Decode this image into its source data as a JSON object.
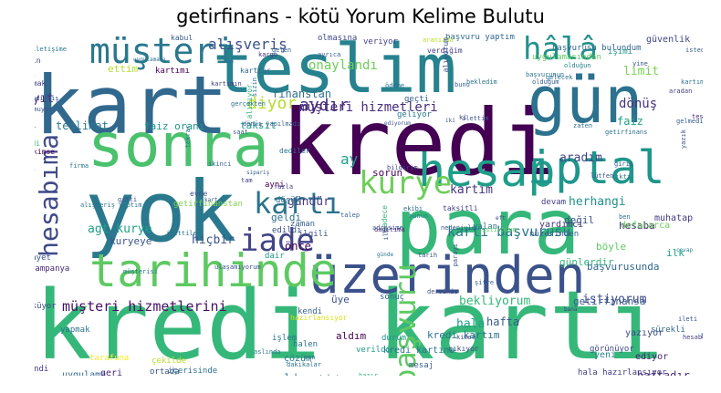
{
  "title": "getirfinans - kötü Yorum Kelime Bulutu",
  "colors": {
    "background": "#ffffff"
  },
  "words": [
    {
      "text": "kredi kartı",
      "color": "#35b779"
    },
    {
      "text": "kredi",
      "color": "#440154"
    },
    {
      "text": "kart",
      "color": "#31688e"
    },
    {
      "text": "teslim",
      "color": "#26828e"
    },
    {
      "text": "gün",
      "color": "#2c728e"
    },
    {
      "text": "yok",
      "color": "#2a788e"
    },
    {
      "text": "para",
      "color": "#35b779"
    },
    {
      "text": "sonra",
      "color": "#4ac16d"
    },
    {
      "text": "hesap",
      "color": "#1f9e89"
    },
    {
      "text": "üzerinden",
      "color": "#3b528b"
    },
    {
      "text": "iptal",
      "color": "#1f968b"
    },
    {
      "text": "tarihinde",
      "color": "#5ec962"
    },
    {
      "text": "müşteri",
      "color": "#2a788e"
    },
    {
      "text": "hesabıma",
      "color": "#3e4a89"
    },
    {
      "text": "kurye",
      "color": "#6ece58"
    },
    {
      "text": "başvuru",
      "color": "#5ec962"
    },
    {
      "text": "iade",
      "color": "#414487"
    },
    {
      "text": "hâlâ",
      "color": "#21918c"
    },
    {
      "text": "kartı",
      "color": "#2c728e"
    },
    {
      "text": "müşteri hizmetlerini",
      "color": "#471063"
    },
    {
      "text": "başvurusu yaptım",
      "color": "#31688e"
    },
    {
      "text": "alışveriş",
      "color": "#3b528b"
    },
    {
      "text": "kartı başvurusu",
      "color": "#2a788e"
    },
    {
      "text": "agt kurye",
      "color": "#1fa187"
    },
    {
      "text": "istiyorum",
      "color": "#3e4a89"
    },
    {
      "text": "bekliyorum",
      "color": "#35b779"
    },
    {
      "text": "onaylandı",
      "color": "#6ece58"
    },
    {
      "text": "diyor",
      "color": "#b5de2b"
    },
    {
      "text": "dönüş",
      "color": "#46337e"
    },
    {
      "text": "limit",
      "color": "#7ad151"
    },
    {
      "text": "aydır",
      "color": "#482878"
    },
    {
      "text": "müşteri hizmetleri",
      "color": "#472c7a"
    },
    {
      "text": "kartım",
      "color": "#46337e"
    },
    {
      "text": "finanstan",
      "color": "#2d708e"
    },
    {
      "text": "hafta",
      "color": "#38588c"
    },
    {
      "text": "kredi kartım",
      "color": "#2d708e"
    },
    {
      "text": "hesaba",
      "color": "#46337e"
    },
    {
      "text": "herhangi",
      "color": "#21918c"
    },
    {
      "text": "aradım",
      "color": "#414487"
    },
    {
      "text": "faiz",
      "color": "#1fa187"
    },
    {
      "text": "kayıt",
      "color": "#46337e"
    },
    {
      "text": "ay",
      "color": "#1fa187"
    },
    {
      "text": "sorun",
      "color": "#440154"
    },
    {
      "text": "kuryeye",
      "color": "#38588c"
    },
    {
      "text": "hiçbir",
      "color": "#3b528b"
    },
    {
      "text": "önce",
      "color": "#440154"
    },
    {
      "text": "gündür",
      "color": "#433e85"
    },
    {
      "text": "geldi",
      "color": "#2c728e"
    },
    {
      "text": "teslimat",
      "color": "#2a788e"
    },
    {
      "text": "faiz oranı",
      "color": "#1f968b"
    },
    {
      "text": "taksit",
      "color": "#1f968b"
    },
    {
      "text": "hala",
      "color": "#1fa187"
    },
    {
      "text": "bugün",
      "color": "#fde725"
    },
    {
      "text": "aldım",
      "color": "#440154"
    },
    {
      "text": "getirfinansa",
      "color": "#38588c"
    },
    {
      "text": "günlerdir",
      "color": "#35b779"
    },
    {
      "text": "üye",
      "color": "#3b528b"
    },
    {
      "text": "oldum",
      "color": "#2a788e"
    },
    {
      "text": "teslim edilmedi",
      "color": "#3e4a89"
    },
    {
      "text": "haftadır",
      "color": "#482878"
    },
    {
      "text": "başvurusunda",
      "color": "#31688e"
    },
    {
      "text": "böyle",
      "color": "#5ec962"
    },
    {
      "text": "ilk",
      "color": "#1fa187"
    },
    {
      "text": "değil",
      "color": "#3b528b"
    },
    {
      "text": "getirfinanstan",
      "color": "#7ad151"
    },
    {
      "text": "ettim",
      "color": "#b5de2b"
    },
    {
      "text": "uygulama",
      "color": "#31688e"
    },
    {
      "text": "kartımı",
      "color": "#440154"
    },
    {
      "text": "yeni",
      "color": "#26828e"
    },
    {
      "text": "ediyor",
      "color": "#481f70"
    },
    {
      "text": "yazıyor",
      "color": "#3e4a89"
    },
    {
      "text": "geri",
      "color": "#482878"
    },
    {
      "text": "çözüm",
      "color": "#2a788e"
    },
    {
      "text": "dair",
      "color": "#1f968b"
    },
    {
      "text": "şimdi",
      "color": "#35b779"
    },
    {
      "text": "kampanya",
      "color": "#482878"
    },
    {
      "text": "şikayet",
      "color": "#3b528b"
    },
    {
      "text": "işlem",
      "color": "#2a788e"
    },
    {
      "text": "yapmak",
      "color": "#2c728e"
    },
    {
      "text": "kendi",
      "color": "#355f8d"
    },
    {
      "text": "sonuç",
      "color": "#31688e"
    },
    {
      "text": "güvenlik",
      "color": "#414487"
    },
    {
      "text": "işimi",
      "color": "#1f968b"
    },
    {
      "text": "kabul",
      "color": "#38588c"
    },
    {
      "text": "olmasına",
      "color": "#3e4a89"
    },
    {
      "text": "başvuru yaptım",
      "color": "#31688e"
    },
    {
      "text": "başvurusu bulundum",
      "color": "#31688e"
    },
    {
      "text": "kartlar",
      "color": "#31688e"
    },
    {
      "text": "verdiğim",
      "color": "#433e85"
    },
    {
      "text": "dağıtıma",
      "color": "#3b528b"
    },
    {
      "text": "hazırlansıyor",
      "color": "#d8e219"
    },
    {
      "text": "çıkıyor",
      "color": "#3e4a89"
    },
    {
      "text": "devam",
      "color": "#433e85"
    },
    {
      "text": "kredi kartına",
      "color": "#2c728e"
    },
    {
      "text": "kredi kartını",
      "color": "#35b779"
    },
    {
      "text": "yardımcı",
      "color": "#46337e"
    },
    {
      "text": "muhatap",
      "color": "#453781"
    },
    {
      "text": "defalarca",
      "color": "#6ece58"
    },
    {
      "text": "nüzerinden",
      "color": "#355f8d"
    },
    {
      "text": "yalan",
      "color": "#2c728e"
    },
    {
      "text": "edildi",
      "color": "#3b528b"
    },
    {
      "text": "düşük",
      "color": "#2c728e"
    },
    {
      "text": "ilgili",
      "color": "#3b528b"
    },
    {
      "text": "taksitli",
      "color": "#433e85"
    },
    {
      "text": "zaman",
      "color": "#355f8d"
    },
    {
      "text": "ayni",
      "color": "#440154"
    },
    {
      "text": "dediler",
      "color": "#2c728e"
    },
    {
      "text": "geliyor",
      "color": "#2a788e"
    },
    {
      "text": "tarihi",
      "color": "#3b528b"
    },
    {
      "text": "paramı",
      "color": "#3b528b"
    },
    {
      "text": "kimse",
      "color": "#440154"
    },
    {
      "text": "evde",
      "color": "#3b528b"
    },
    {
      "text": "söylendi",
      "color": "#433e85"
    },
    {
      "text": "veriyor",
      "color": "#414487"
    },
    {
      "text": "uygulamasından",
      "color": "#5ec962"
    },
    {
      "text": "görünüyor",
      "color": "#3e4a89"
    },
    {
      "text": "sürekli",
      "color": "#31688e"
    },
    {
      "text": "verildi",
      "color": "#1f968b"
    },
    {
      "text": "durum",
      "color": "#1f968b"
    },
    {
      "text": "mesaj",
      "color": "#355f8d"
    },
    {
      "text": "halen",
      "color": "#2c728e"
    },
    {
      "text": "tarafuna",
      "color": "#fde725"
    },
    {
      "text": "ortada",
      "color": "#3b528b"
    },
    {
      "text": "içerisinde",
      "color": "#2c728e"
    },
    {
      "text": "çekilde",
      "color": "#b5de2b"
    },
    {
      "text": "gözüküyor",
      "color": "#3e4a89"
    },
    {
      "text": "kullanmak",
      "color": "#433e85"
    },
    {
      "text": "kuryenin",
      "color": "#414487"
    },
    {
      "text": "geçti",
      "color": "#355f8d"
    },
    {
      "text": "aslında",
      "color": "#2a788e"
    },
    {
      "text": "dakikalar",
      "color": "#2c728e"
    },
    {
      "text": "hala hazırlansıyor",
      "color": "#433e85"
    },
    {
      "text": "iletişime",
      "color": "#2a788e"
    },
    {
      "text": "oluşturdum",
      "color": "#31688e"
    },
    {
      "text": "uygulaması",
      "color": "#2c728e"
    },
    {
      "text": "kartımın",
      "color": "#433e85"
    },
    {
      "text": "saat",
      "color": "#355f8d"
    },
    {
      "text": "tekrar",
      "color": "#2a788e"
    },
    {
      "text": "başka",
      "color": "#3b528b"
    },
    {
      "text": "gelen",
      "color": "#355f8d"
    },
    {
      "text": "kargo",
      "color": "#46337e"
    },
    {
      "text": "yine",
      "color": "#3b528b"
    },
    {
      "text": "bunu",
      "color": "#355f8d"
    },
    {
      "text": "aradan",
      "color": "#433e85"
    },
    {
      "text": "lütfen",
      "color": "#3b528b"
    },
    {
      "text": "istedim",
      "color": "#355f8d"
    },
    {
      "text": "sipariş",
      "color": "#355f8d"
    },
    {
      "text": "bildirim",
      "color": "#3e4a89"
    },
    {
      "text": "alışveriş yaptım",
      "color": "#2a788e"
    },
    {
      "text": "olduğun",
      "color": "#26828e"
    },
    {
      "text": "olduğum",
      "color": "#355f8d"
    },
    {
      "text": "başvurunun",
      "color": "#2c728e"
    },
    {
      "text": "teslim edildi",
      "color": "#482878"
    },
    {
      "text": "parayı",
      "color": "#3b528b"
    },
    {
      "text": "kartımla",
      "color": "#2c728e"
    },
    {
      "text": "aranızda",
      "color": "#b5de2b"
    },
    {
      "text": "sadece",
      "color": "#35b779"
    },
    {
      "text": "ödeme",
      "color": "#2c728e"
    },
    {
      "text": "bunun",
      "color": "#26828e"
    },
    {
      "text": "alınıyor",
      "color": "#35b779"
    },
    {
      "text": "fazla",
      "color": "#433e85"
    },
    {
      "text": "ayrıca",
      "color": "#355f8d"
    },
    {
      "text": "istiyorum",
      "color": "#5ec962"
    },
    {
      "text": "adresime",
      "color": "#3b528b"
    },
    {
      "text": "ekibi",
      "color": "#2c728e"
    },
    {
      "text": "giriş",
      "color": "#355f8d"
    },
    {
      "text": "olmuyor",
      "color": "#3b528b"
    },
    {
      "text": "ki",
      "color": "#3e4a89"
    },
    {
      "text": "ikinci",
      "color": "#31688e"
    },
    {
      "text": "zaten",
      "color": "#2c728e"
    },
    {
      "text": "ileti",
      "color": "#3b528b"
    },
    {
      "text": "şifre",
      "color": "#355f8d"
    },
    {
      "text": "cevap",
      "color": "#26828e"
    },
    {
      "text": "günde",
      "color": "#2a788e"
    },
    {
      "text": "hesabımı",
      "color": "#433e85"
    },
    {
      "text": "ilettim",
      "color": "#3b528b"
    },
    {
      "text": "bekledim",
      "color": "#2c728e"
    },
    {
      "text": "alıyorum",
      "color": "#3b528b"
    },
    {
      "text": "dağıtıma",
      "color": "#482878"
    },
    {
      "text": "sizin",
      "color": "#2c728e"
    },
    {
      "text": "edilmiş",
      "color": "#3b528b"
    },
    {
      "text": "gelmedi",
      "color": "#355f8d"
    },
    {
      "text": "kartı",
      "color": "#26828e"
    },
    {
      "text": "tam",
      "color": "#433e85"
    },
    {
      "text": "hata",
      "color": "#2c728e"
    },
    {
      "text": "kart",
      "color": "#3b528b"
    },
    {
      "text": "hazır",
      "color": "#35b779"
    },
    {
      "text": "gerçekten",
      "color": "#2c728e"
    },
    {
      "text": "dersiniz",
      "color": "#3b528b"
    },
    {
      "text": "nedeniyle",
      "color": "#355f8d"
    },
    {
      "text": "müşterisi",
      "color": "#2c728e"
    },
    {
      "text": "eft",
      "color": "#433e85"
    },
    {
      "text": "ediyorum",
      "color": "#3b528b"
    },
    {
      "text": "gelecek",
      "color": "#2c728e"
    },
    {
      "text": "yazık",
      "color": "#3b528b"
    },
    {
      "text": "talep",
      "color": "#355f8d"
    },
    {
      "text": "çıktı",
      "color": "#2c728e"
    },
    {
      "text": "tarih",
      "color": "#3b528b"
    },
    {
      "text": "dönüş yapılmadı",
      "color": "#355f8d"
    },
    {
      "text": "son",
      "color": "#2c728e"
    },
    {
      "text": "kimse",
      "color": "#3b528b"
    },
    {
      "text": "bana",
      "color": "#433e85"
    },
    {
      "text": "ben",
      "color": "#2c728e"
    },
    {
      "text": "iki",
      "color": "#3b528b"
    },
    {
      "text": "ilk",
      "color": "#355f8d"
    },
    {
      "text": "getirfinans",
      "color": "#2c728e"
    },
    {
      "text": "firma",
      "color": "#2a788e"
    },
    {
      "text": "gitti",
      "color": "#3b528b"
    },
    {
      "text": "ilettiler",
      "color": "#2c728e"
    },
    {
      "text": "ulaşamıyorum",
      "color": "#3b528b"
    }
  ]
}
